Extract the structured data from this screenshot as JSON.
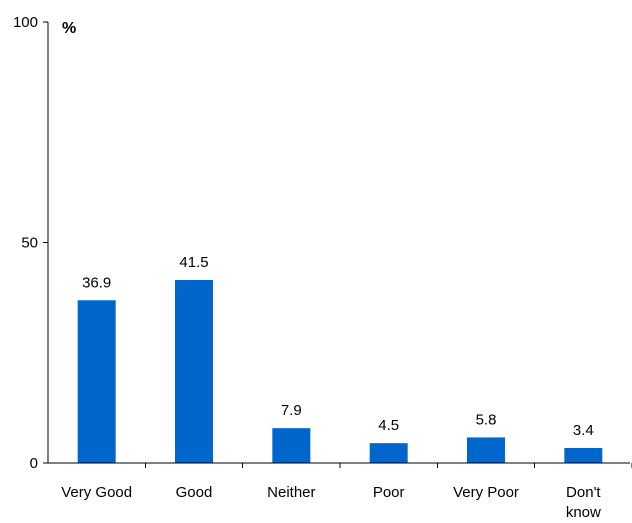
{
  "chart_data": {
    "type": "bar",
    "categories": [
      "Very Good",
      "Good",
      "Neither",
      "Poor",
      "Very Poor",
      "Don't know"
    ],
    "category_lines": [
      [
        "Very Good"
      ],
      [
        "Good"
      ],
      [
        "Neither"
      ],
      [
        "Poor"
      ],
      [
        "Very Poor"
      ],
      [
        "Don't",
        "know"
      ]
    ],
    "values": [
      36.9,
      41.5,
      7.9,
      4.5,
      5.8,
      3.4
    ],
    "value_labels": [
      "36.9",
      "41.5",
      "7.9",
      "4.5",
      "5.8",
      "3.4"
    ],
    "ylim": [
      0,
      100
    ],
    "yticks": [
      0,
      50,
      100
    ],
    "ytick_labels": [
      "0",
      "50",
      "100"
    ],
    "unit_label": "%",
    "grid": false,
    "bar_color": "#0066CC"
  }
}
